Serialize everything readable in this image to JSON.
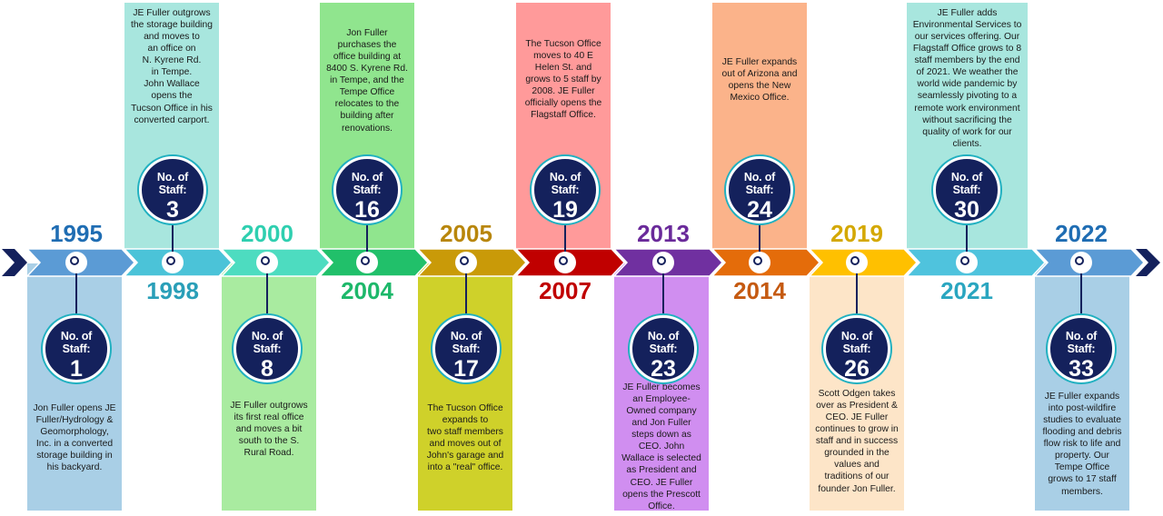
{
  "theme": {
    "badge_color": "#14215c",
    "badge_ring": "#20b0c0",
    "end_arrow_color": "#14215c"
  },
  "badge_label": "No. of Staff:",
  "milestones": [
    {
      "year": "1995",
      "staff": "1",
      "position": "below",
      "segment_color": "#5b9bd5",
      "panel_color": "#a9cfe6",
      "year_color": "#1f6db3",
      "text": "Jon Fuller opens JE\nFuller/Hydrology &\nGeomorphology,\nInc. in a converted\nstorage building in\nhis backyard."
    },
    {
      "year": "1998",
      "staff": "3",
      "position": "above",
      "segment_color": "#4bc3d8",
      "panel_color": "#a8e6de",
      "year_color": "#2a9fb8",
      "text": "JE Fuller outgrows\nthe storage building\nand moves to\nan office on\nN. Kyrene Rd.\nin Tempe.\nJohn Wallace\nopens the\nTucson Office in his\nconverted carport."
    },
    {
      "year": "2000",
      "staff": "8",
      "position": "below",
      "segment_color": "#4ddcc0",
      "panel_color": "#a9eba0",
      "year_color": "#2fcfb0",
      "text": "JE Fuller outgrows\nits first real office\nand moves a bit\nsouth to the S.\nRural Road."
    },
    {
      "year": "2004",
      "staff": "16",
      "position": "above",
      "segment_color": "#21c06a",
      "panel_color": "#90e58e",
      "year_color": "#1db86a",
      "text": "Jon Fuller\npurchases the\noffice building at\n8400 S. Kyrene Rd.\nin Tempe, and the\nTempe Office\nrelocates to the\nbuilding after\nrenovations."
    },
    {
      "year": "2005",
      "staff": "17",
      "position": "below",
      "segment_color": "#c99a08",
      "panel_color": "#cfd12a",
      "year_color": "#b8860b",
      "text": "The Tucson Office\nexpands to\ntwo staff members\nand moves out of\nJohn's garage and\ninto a \"real\" office."
    },
    {
      "year": "2007",
      "staff": "19",
      "position": "above",
      "segment_color": "#c00000",
      "panel_color": "#ff9a9a",
      "year_color": "#c00000",
      "text": "The Tucson Office\nmoves to 40 E\nHelen St. and\ngrows to 5 staff by\n2008.  JE Fuller\nofficially opens the\nFlagstaff Office."
    },
    {
      "year": "2013",
      "staff": "23",
      "position": "below",
      "segment_color": "#7030a0",
      "panel_color": "#d08ef0",
      "year_color": "#6a2a9a",
      "text": "JE Fuller becomes\nan Employee-\nOwned company\nand Jon Fuller\nsteps down as\nCEO.  John\nWallace is selected\nas President and\nCEO.  JE Fuller\nopens the Prescott\nOffice."
    },
    {
      "year": "2014",
      "staff": "24",
      "position": "above",
      "segment_color": "#e46c0a",
      "panel_color": "#fbb38a",
      "year_color": "#c55a11",
      "text": "JE Fuller expands\nout of Arizona and\nopens the New\nMexico Office."
    },
    {
      "year": "2019",
      "staff": "26",
      "position": "below",
      "segment_color": "#ffc000",
      "panel_color": "#fde5c8",
      "year_color": "#d4a800",
      "text": "Scott Odgen takes\nover as President &\nCEO. JE Fuller\ncontinues to grow in\nstaff and in success\ngrounded in the\nvalues and\ntraditions of our\nfounder Jon Fuller."
    },
    {
      "year": "2021",
      "staff": "30",
      "position": "above",
      "segment_color": "#4fc3dd",
      "panel_color": "#a8e6de",
      "year_color": "#2aa6c0",
      "text": "JE Fuller adds\nEnvironmental Services to\nour services offering.  Our\nFlagstaff Office grows to 8\nstaff members by the end\nof 2021. We weather the\nworld wide pandemic by\nseamlessly pivoting to a\nremote work environment\nwithout sacrificing the\nquality of work for our\nclients."
    },
    {
      "year": "2022",
      "staff": "33",
      "position": "below",
      "segment_color": "#5b9bd5",
      "panel_color": "#a9cfe6",
      "year_color": "#1f6db3",
      "text": "JE Fuller expands\ninto post-wildfire\nstudies to evaluate\nflooding and debris\nflow risk to life and\nproperty.  Our\nTempe Office\ngrows to 17 staff\nmembers."
    }
  ]
}
